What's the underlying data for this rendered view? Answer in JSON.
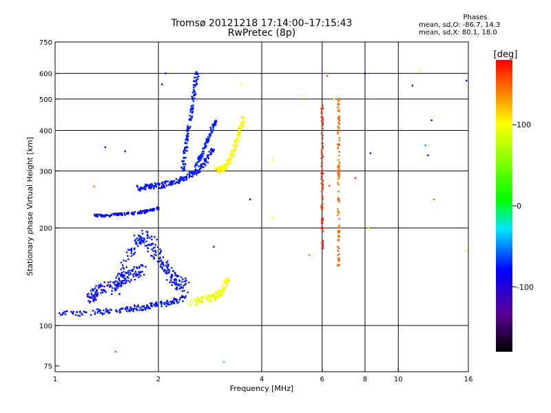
{
  "header": {
    "title_line1": "Tromsø 20121218 17:14:00–17:15:43",
    "title_line2": "RwPretec (8p)"
  },
  "phase_info": {
    "heading": "Phases",
    "row_o": "mean, sd,O: -86.7, 14.3",
    "row_x": "mean, sd,X: 80.1, 18.0"
  },
  "colorbar": {
    "label": "[deg]",
    "ticks": [
      "100",
      "0",
      "-100"
    ],
    "tick_values": [
      100,
      0,
      -100
    ],
    "range": [
      -180,
      180
    ]
  },
  "chart_data": {
    "type": "scatter",
    "title": "Tromsø 20121218 17:14:00–17:15:43",
    "subtitle": "RwPretec (8p)",
    "xlabel": "Frequency [MHz]",
    "ylabel": "Stationary phase Virtual Height [km]",
    "xscale": "log",
    "yscale": "log",
    "xlim": [
      1,
      16
    ],
    "ylim": [
      72,
      750
    ],
    "x_ticks": [
      1,
      2,
      4,
      6,
      8,
      10,
      16
    ],
    "x_tick_labels": [
      "1",
      "2",
      "4",
      "6",
      "8",
      "10",
      "16"
    ],
    "y_ticks": [
      75,
      100,
      200,
      300,
      400,
      500,
      600,
      750
    ],
    "y_tick_labels": [
      "75",
      "100",
      "200",
      "300",
      "400",
      "500",
      "600",
      "750"
    ],
    "grid": true,
    "color_scale": "phase [deg], rainbow from black (-180) through blue (-100), cyan, green (0), yellow (100) to red (180)",
    "traces": [
      {
        "x": [
          1.0,
          1.3,
          1.5,
          1.7,
          1.85,
          2.0,
          2.2,
          2.4
        ],
        "y": [
          108,
          110,
          111,
          113,
          114,
          116,
          118,
          122
        ],
        "phase": -95,
        "spread": 0.04
      },
      {
        "x": [
          1.5,
          1.6,
          1.7,
          1.8,
          1.9,
          2.0,
          2.1,
          2.2,
          2.3,
          2.4
        ],
        "y": [
          130,
          150,
          175,
          190,
          180,
          165,
          150,
          140,
          135,
          132
        ],
        "phase": -95,
        "spread": 0.1
      },
      {
        "x": [
          1.25,
          1.3,
          1.35,
          1.5,
          1.6,
          1.7,
          1.8
        ],
        "y": [
          120,
          125,
          130,
          135,
          140,
          145,
          150
        ],
        "phase": -98,
        "spread": 0.08
      },
      {
        "x": [
          1.3,
          1.4,
          1.55,
          1.7,
          1.85,
          2.0
        ],
        "y": [
          218,
          218,
          220,
          222,
          225,
          230
        ],
        "phase": -100,
        "spread": 0.02
      },
      {
        "x": [
          1.75,
          1.85,
          2.0,
          2.15,
          2.3,
          2.45,
          2.6,
          2.75,
          2.9
        ],
        "y": [
          265,
          268,
          270,
          275,
          280,
          290,
          300,
          320,
          350
        ],
        "phase": -95,
        "spread": 0.04
      },
      {
        "x": [
          2.35,
          2.4,
          2.45,
          2.5,
          2.55,
          2.6
        ],
        "y": [
          300,
          350,
          400,
          460,
          540,
          620
        ],
        "phase": -92,
        "spread": 0.04
      },
      {
        "x": [
          2.55,
          2.65,
          2.75,
          2.85,
          2.95
        ],
        "y": [
          310,
          330,
          360,
          400,
          430
        ],
        "phase": -90,
        "spread": 0.03
      },
      {
        "x": [
          2.95,
          3.05,
          3.15,
          3.25,
          3.35,
          3.45,
          3.55
        ],
        "y": [
          300,
          305,
          310,
          330,
          360,
          400,
          440
        ],
        "phase": 100,
        "spread": 0.04
      },
      {
        "x": [
          2.5,
          2.7,
          2.9,
          3.0,
          3.1,
          3.2
        ],
        "y": [
          118,
          120,
          122,
          125,
          130,
          140
        ],
        "phase": 95,
        "spread": 0.05
      },
      {
        "x": [
          6.7,
          6.7,
          6.7,
          6.7,
          6.7
        ],
        "y": [
          150,
          200,
          300,
          400,
          520
        ],
        "phase": 150,
        "spread": 0.02
      },
      {
        "x": [
          6.0,
          6.0,
          6.0,
          6.0
        ],
        "y": [
          170,
          250,
          350,
          480
        ],
        "phase": 170,
        "spread": 0.02
      }
    ],
    "scattered_points": [
      {
        "x": 1.05,
        "y": 108,
        "phase": -100
      },
      {
        "x": 1.3,
        "y": 268,
        "phase": 150
      },
      {
        "x": 1.4,
        "y": 355,
        "phase": -95
      },
      {
        "x": 1.5,
        "y": 83,
        "phase": 160
      },
      {
        "x": 1.6,
        "y": 345,
        "phase": -95
      },
      {
        "x": 2.05,
        "y": 555,
        "phase": -100
      },
      {
        "x": 2.1,
        "y": 600,
        "phase": -110
      },
      {
        "x": 2.9,
        "y": 175,
        "phase": -95
      },
      {
        "x": 3.1,
        "y": 77,
        "phase": -20
      },
      {
        "x": 3.5,
        "y": 555,
        "phase": 100
      },
      {
        "x": 3.7,
        "y": 245,
        "phase": -170
      },
      {
        "x": 4.3,
        "y": 325,
        "phase": 100
      },
      {
        "x": 4.3,
        "y": 215,
        "phase": 100
      },
      {
        "x": 5.3,
        "y": 500,
        "phase": 140
      },
      {
        "x": 5.5,
        "y": 165,
        "phase": 150
      },
      {
        "x": 6.2,
        "y": 590,
        "phase": 160
      },
      {
        "x": 6.3,
        "y": 270,
        "phase": 160
      },
      {
        "x": 6.5,
        "y": 500,
        "phase": 100
      },
      {
        "x": 7.5,
        "y": 285,
        "phase": 170
      },
      {
        "x": 8.0,
        "y": 600,
        "phase": -90
      },
      {
        "x": 8.2,
        "y": 200,
        "phase": 60
      },
      {
        "x": 8.3,
        "y": 340,
        "phase": -95
      },
      {
        "x": 11.0,
        "y": 550,
        "phase": -100
      },
      {
        "x": 11.5,
        "y": 610,
        "phase": 100
      },
      {
        "x": 12.0,
        "y": 360,
        "phase": -50
      },
      {
        "x": 12.2,
        "y": 335,
        "phase": -120
      },
      {
        "x": 12.5,
        "y": 430,
        "phase": -100
      },
      {
        "x": 12.7,
        "y": 245,
        "phase": 150
      },
      {
        "x": 15.8,
        "y": 170,
        "phase": 80
      },
      {
        "x": 15.8,
        "y": 570,
        "phase": -100
      }
    ]
  }
}
